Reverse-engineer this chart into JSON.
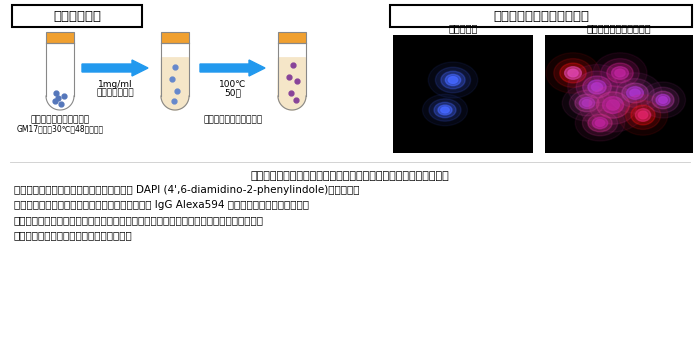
{
  "title_left": "菌体修飾方法",
  "title_right": "卵白リゾチーム修飾菌体像",
  "tube1_label1": "ラクトコッカス属乳酸菌",
  "tube1_label2": "GM17培地、30℃、48時間培養",
  "tube3_label": "卵白リゾチーム修飾菌体",
  "arrow1_label1": "1mg/ml",
  "arrow1_label2": "卵白リゾチーム",
  "arrow2_label1": "100℃",
  "arrow2_label2": "50分",
  "micro_label1": "加熱死菌体",
  "micro_label2": "卵白リゾチーム修飾菌体",
  "caption_title": "図１．菌体修飾方法と卵白リゾチーム修飾菌体の蛍光顕微鏡観察図",
  "caption_line1": "菌体修飾方法を図に示した。菌体の核酸は DAPI (4',6-diamidino-2-phenylindole)、卵白リゾ",
  "caption_line2": "チームはウサギ抗卵白リゾチーム抗体と抗ウサギ IgG Alexa594 で染色し、蛍光顕微鏡で観察",
  "caption_line3": "した。核酸が青、卵白リゾチームが赤で染まっている。卵白リゾチーム修飾菌体では、菌",
  "caption_line4": "体表層に卵白リゾチームが凝集している。",
  "bg_color": "#ffffff",
  "tube_body_color": "#f5e6c8",
  "tube_cap_color": "#f0a030",
  "tube2_dot_color": "#6688cc",
  "tube3_dot_color": "#884499",
  "arrow_color": "#2299ee"
}
